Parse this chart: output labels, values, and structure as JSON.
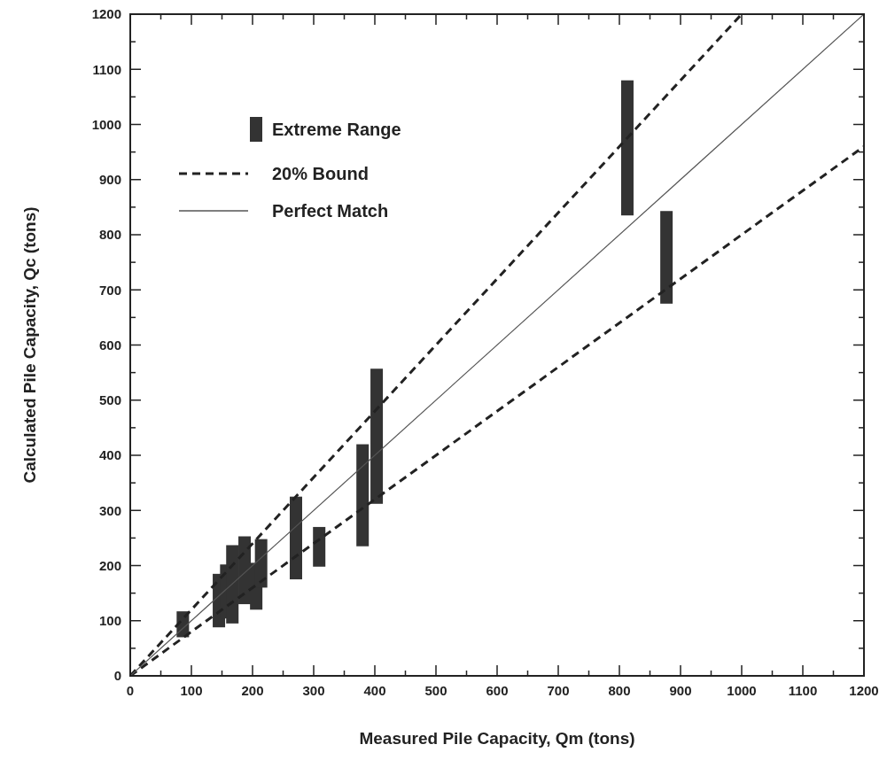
{
  "chart_data": {
    "type": "bar",
    "xlabel": "Measured Pile Capacity, Qm (tons)",
    "ylabel": "Calculated Pile Capacity, Qc (tons)",
    "xlim": [
      0,
      1200
    ],
    "ylim": [
      0,
      1200
    ],
    "xticks": [
      0,
      {
        "value": 50,
        "label": null
      },
      100,
      {
        "value": 150,
        "label": null
      },
      200,
      {
        "value": 250,
        "label": null
      },
      300,
      {
        "value": 350,
        "label": null
      },
      400,
      {
        "value": 450,
        "label": null
      },
      500,
      {
        "value": 550,
        "label": null
      },
      600,
      {
        "value": 650,
        "label": null
      },
      700,
      {
        "value": 750,
        "label": null
      },
      800,
      {
        "value": 850,
        "label": null
      },
      900,
      {
        "value": 950,
        "label": null
      },
      1000,
      {
        "value": 1050,
        "label": null
      },
      1100,
      {
        "value": 1150,
        "label": null
      },
      1200
    ],
    "yticks": [
      0,
      {
        "value": 50,
        "label": null
      },
      100,
      {
        "value": 150,
        "label": null
      },
      200,
      {
        "value": 250,
        "label": null
      },
      300,
      {
        "value": 350,
        "label": null
      },
      400,
      {
        "value": 450,
        "label": null
      },
      500,
      {
        "value": 550,
        "label": null
      },
      600,
      {
        "value": 650,
        "label": null
      },
      700,
      {
        "value": 750,
        "label": null
      },
      800,
      {
        "value": 850,
        "label": null
      },
      900,
      {
        "value": 950,
        "label": null
      },
      1000,
      {
        "value": 1050,
        "label": null
      },
      1100,
      {
        "value": 1150,
        "label": null
      },
      1200
    ],
    "grid": false,
    "legend": "top left",
    "series": [
      {
        "name": "Extreme Range",
        "color": "#333333",
        "x": [
          86,
          145,
          157,
          167,
          187,
          206,
          214,
          271,
          309,
          380,
          403,
          813,
          877
        ],
        "base": [
          70,
          88,
          104,
          95,
          130,
          120,
          160,
          175,
          198,
          235,
          312,
          835,
          675
        ],
        "values": [
          47,
          97,
          98,
          142,
          123,
          85,
          88,
          150,
          72,
          185,
          245,
          245,
          168
        ]
      },
      {
        "type": "line",
        "name": "20% Bound",
        "color": "#222222",
        "line_style": "dashed",
        "x": [
          0,
          1000
        ],
        "values": [
          0,
          1200
        ]
      },
      {
        "type": "line",
        "color": "#222222",
        "line_style": "dashed",
        "x": [
          0,
          1200
        ],
        "values": [
          0,
          960
        ]
      },
      {
        "type": "line",
        "name": "Perfect Match",
        "color": "#555555",
        "line_style": "solid",
        "x": [
          0,
          1200
        ],
        "values": [
          0,
          1200
        ]
      }
    ]
  }
}
